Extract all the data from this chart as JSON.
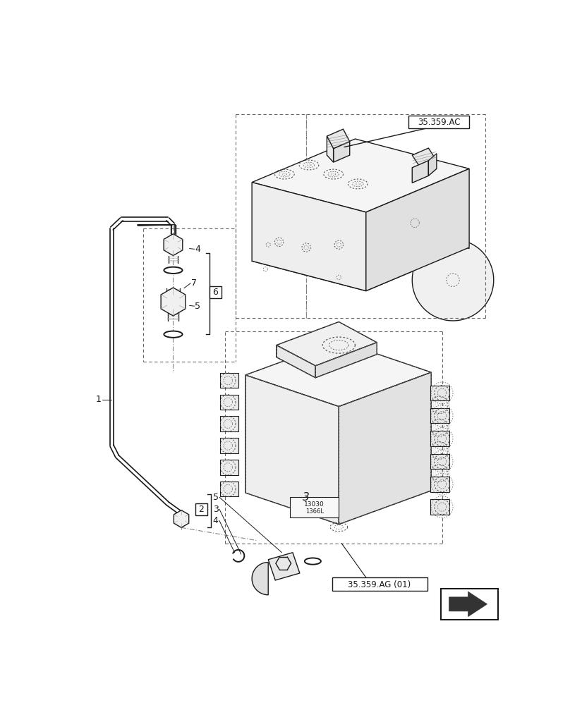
{
  "background_color": "#ffffff",
  "line_color": "#1a1a1a",
  "label_ref1": "35.359.AC",
  "label_ref2": "35.359.AG (01)",
  "callout_box1": "6",
  "callout_box2": "2",
  "dashed_color": "#555555",
  "dotdash_color": "#777777"
}
